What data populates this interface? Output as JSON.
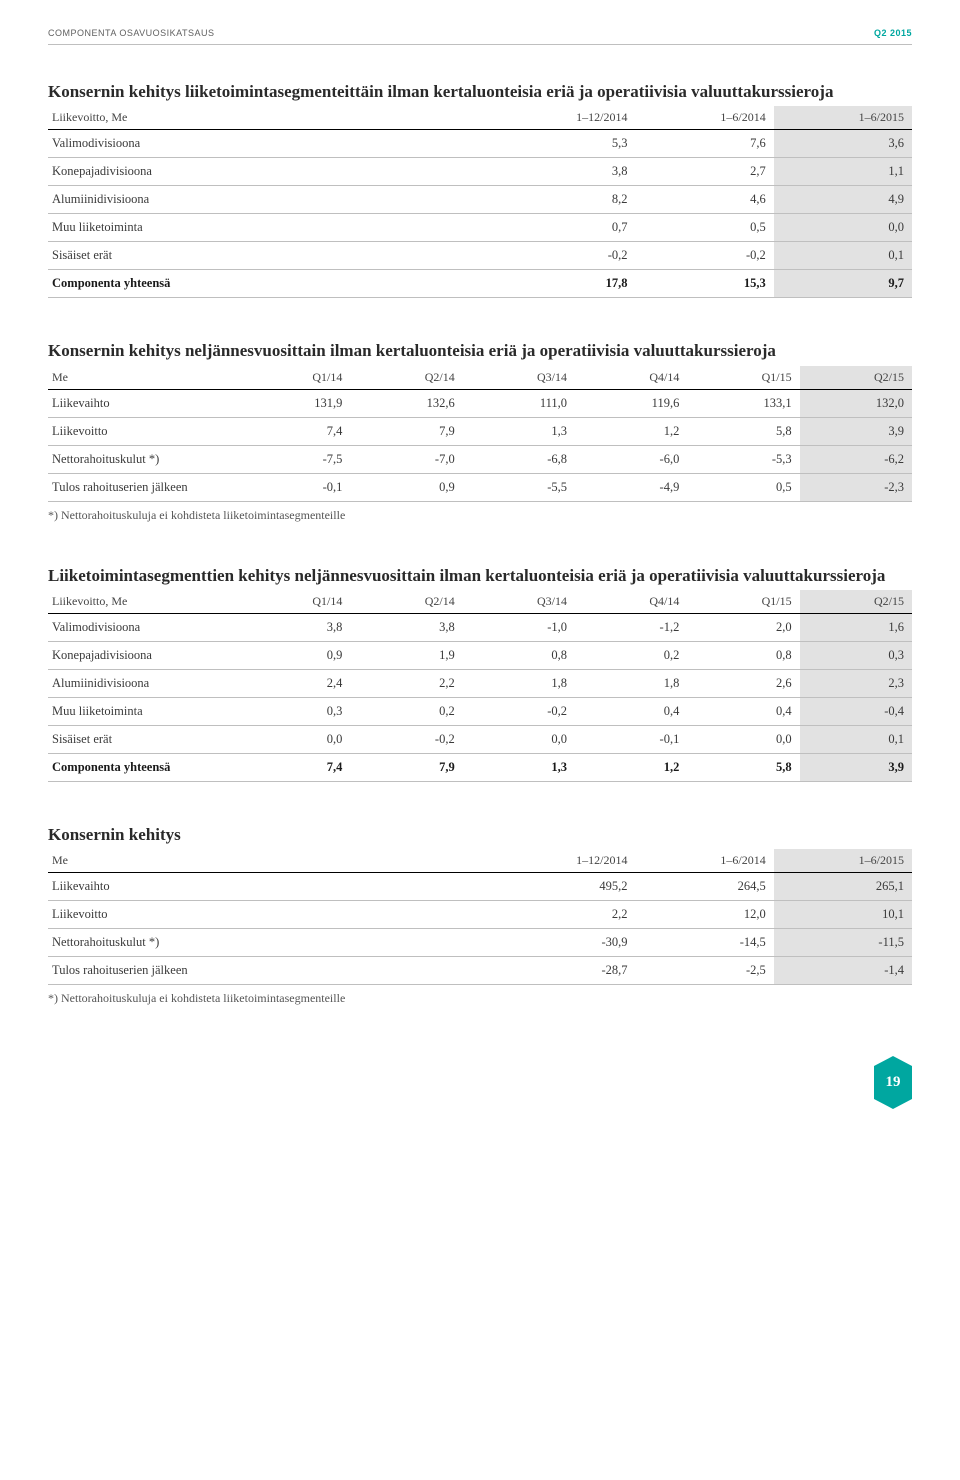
{
  "header": {
    "left": "COMPONENTA OSAVUOSIKATSAUS",
    "right": "Q2 2015"
  },
  "columnWidths": {
    "t3col": {
      "label": 52,
      "col": 16
    },
    "t6col": {
      "label": 22,
      "col": 13
    }
  },
  "table1": {
    "title": "Konsernin kehitys liiketoimintasegmenteittäin ilman kertaluonteisia eriä ja operatiivisia valuuttakurssieroja",
    "headerRow": [
      "Liikevoitto, Me",
      "1–12/2014",
      "1–6/2014",
      "1–6/2015"
    ],
    "rows": [
      {
        "label": "Valimodivisioona",
        "c": [
          "5,3",
          "7,6",
          "3,6"
        ]
      },
      {
        "label": "Konepajadivisioona",
        "c": [
          "3,8",
          "2,7",
          "1,1"
        ]
      },
      {
        "label": "Alumiinidivisioona",
        "c": [
          "8,2",
          "4,6",
          "4,9"
        ]
      },
      {
        "label": "Muu liiketoiminta",
        "c": [
          "0,7",
          "0,5",
          "0,0"
        ]
      },
      {
        "label": "Sisäiset erät",
        "c": [
          "-0,2",
          "-0,2",
          "0,1"
        ]
      },
      {
        "label": "Componenta yhteensä",
        "c": [
          "17,8",
          "15,3",
          "9,7"
        ],
        "total": true
      }
    ]
  },
  "table2": {
    "title": "Konsernin kehitys neljännesvuosittain ilman kertaluonteisia eriä ja operatiivisia valuuttakurssieroja",
    "headerRow": [
      "Me",
      "Q1/14",
      "Q2/14",
      "Q3/14",
      "Q4/14",
      "Q1/15",
      "Q2/15"
    ],
    "rows": [
      {
        "label": "Liikevaihto",
        "c": [
          "131,9",
          "132,6",
          "111,0",
          "119,6",
          "133,1",
          "132,0"
        ]
      },
      {
        "label": "Liikevoitto",
        "c": [
          "7,4",
          "7,9",
          "1,3",
          "1,2",
          "5,8",
          "3,9"
        ]
      },
      {
        "label": "Nettorahoituskulut *)",
        "c": [
          "-7,5",
          "-7,0",
          "-6,8",
          "-6,0",
          "-5,3",
          "-6,2"
        ]
      },
      {
        "label": "Tulos rahoituserien jälkeen",
        "c": [
          "-0,1",
          "0,9",
          "-5,5",
          "-4,9",
          "0,5",
          "-2,3"
        ]
      }
    ],
    "footnote": "*) Nettorahoituskuluja ei kohdisteta liiketoimintasegmenteille"
  },
  "table3": {
    "title": "Liiketoimintasegmenttien kehitys neljännesvuosittain ilman kertaluonteisia eriä ja operatiivisia valuuttakurssieroja",
    "headerRow": [
      "Liikevoitto, Me",
      "Q1/14",
      "Q2/14",
      "Q3/14",
      "Q4/14",
      "Q1/15",
      "Q2/15"
    ],
    "rows": [
      {
        "label": "Valimodivisioona",
        "c": [
          "3,8",
          "3,8",
          "-1,0",
          "-1,2",
          "2,0",
          "1,6"
        ]
      },
      {
        "label": "Konepajadivisioona",
        "c": [
          "0,9",
          "1,9",
          "0,8",
          "0,2",
          "0,8",
          "0,3"
        ]
      },
      {
        "label": "Alumiinidivisioona",
        "c": [
          "2,4",
          "2,2",
          "1,8",
          "1,8",
          "2,6",
          "2,3"
        ]
      },
      {
        "label": "Muu liiketoiminta",
        "c": [
          "0,3",
          "0,2",
          "-0,2",
          "0,4",
          "0,4",
          "-0,4"
        ]
      },
      {
        "label": "Sisäiset erät",
        "c": [
          "0,0",
          "-0,2",
          "0,0",
          "-0,1",
          "0,0",
          "0,1"
        ]
      },
      {
        "label": "Componenta yhteensä",
        "c": [
          "7,4",
          "7,9",
          "1,3",
          "1,2",
          "5,8",
          "3,9"
        ],
        "total": true
      }
    ]
  },
  "table4": {
    "title": "Konsernin kehitys",
    "headerRow": [
      "Me",
      "1–12/2014",
      "1–6/2014",
      "1–6/2015"
    ],
    "rows": [
      {
        "label": "Liikevaihto",
        "c": [
          "495,2",
          "264,5",
          "265,1"
        ]
      },
      {
        "label": "Liikevoitto",
        "c": [
          "2,2",
          "12,0",
          "10,1"
        ]
      },
      {
        "label": "Nettorahoituskulut *)",
        "c": [
          "-30,9",
          "-14,5",
          "-11,5"
        ]
      },
      {
        "label": "Tulos rahoituserien jälkeen",
        "c": [
          "-28,7",
          "-2,5",
          "-1,4"
        ]
      }
    ],
    "footnote": "*) Nettorahoituskuluja ei kohdisteta liiketoimintasegmenteille"
  },
  "pageNumber": "19"
}
